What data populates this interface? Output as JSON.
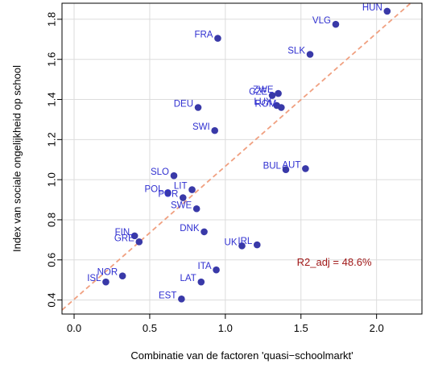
{
  "chart_data": {
    "type": "scatter",
    "xlabel": "Combinatie van de factoren 'quasi−schoolmarkt'",
    "ylabel": "Index van sociale ongelijkheid op school",
    "xlim": [
      -0.08,
      2.3
    ],
    "ylim": [
      0.33,
      1.88
    ],
    "x_ticks": [
      "0.0",
      "0.5",
      "1.0",
      "1.5",
      "2.0"
    ],
    "x_tick_values": [
      0,
      0.5,
      1.0,
      1.5,
      2.0
    ],
    "y_ticks": [
      "0.4",
      "0.6",
      "0.8",
      "1.0",
      "1.2",
      "1.4",
      "1.6",
      "1.8"
    ],
    "y_tick_values": [
      0.4,
      0.6,
      0.8,
      1.0,
      1.2,
      1.4,
      1.6,
      1.8
    ],
    "grid": true,
    "point_color": "#3939a8",
    "label_color": "#2f2fd0",
    "trend_color": "#f0a080",
    "annotation_color": "#a01818",
    "trend_line": {
      "x": [
        -0.08,
        2.3
      ],
      "y": [
        0.35,
        1.93
      ]
    },
    "annotation": "R2_adj = 48.6%",
    "points": [
      {
        "label": "HUN",
        "x": 2.07,
        "y": 1.84
      },
      {
        "label": "VLG",
        "x": 1.73,
        "y": 1.775
      },
      {
        "label": "FRA",
        "x": 0.95,
        "y": 1.705
      },
      {
        "label": "SLK",
        "x": 1.56,
        "y": 1.625
      },
      {
        "label": "ZWE",
        "x": 1.35,
        "y": 1.43
      },
      {
        "label": "CZE",
        "x": 1.31,
        "y": 1.42
      },
      {
        "label": "LUX",
        "x": 1.34,
        "y": 1.37
      },
      {
        "label": "ROM",
        "x": 1.37,
        "y": 1.36
      },
      {
        "label": "DEU",
        "x": 0.82,
        "y": 1.36
      },
      {
        "label": "SWI",
        "x": 0.93,
        "y": 1.245
      },
      {
        "label": "BUL",
        "x": 1.4,
        "y": 1.05
      },
      {
        "label": "AUT",
        "x": 1.53,
        "y": 1.055
      },
      {
        "label": "SLO",
        "x": 0.66,
        "y": 1.02
      },
      {
        "label": "LIT",
        "x": 0.78,
        "y": 0.95
      },
      {
        "label": "POL",
        "x": 0.62,
        "y": 0.935
      },
      {
        "label": "POR",
        "x": 0.72,
        "y": 0.91
      },
      {
        "label": "SWE",
        "x": 0.81,
        "y": 0.855
      },
      {
        "label": "DNK",
        "x": 0.86,
        "y": 0.74
      },
      {
        "label": "FIN",
        "x": 0.4,
        "y": 0.72
      },
      {
        "label": "GRE",
        "x": 0.43,
        "y": 0.69
      },
      {
        "label": "IRL",
        "x": 1.21,
        "y": 0.675
      },
      {
        "label": "UK",
        "x": 1.11,
        "y": 0.67
      },
      {
        "label": "ITA",
        "x": 0.94,
        "y": 0.55
      },
      {
        "label": "NOR",
        "x": 0.32,
        "y": 0.52
      },
      {
        "label": "ISL",
        "x": 0.21,
        "y": 0.49
      },
      {
        "label": "LAT",
        "x": 0.84,
        "y": 0.49
      },
      {
        "label": "EST",
        "x": 0.71,
        "y": 0.405
      }
    ]
  }
}
